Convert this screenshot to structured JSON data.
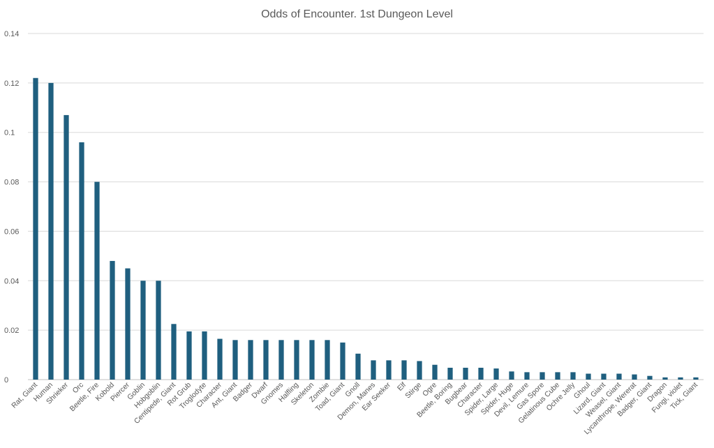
{
  "chart_data": {
    "type": "bar",
    "title": "Odds of Encounter. 1st Dungeon Level",
    "xlabel": "",
    "ylabel": "",
    "ylim": [
      0,
      0.14
    ],
    "yticks": [
      "0",
      "0.02",
      "0.04",
      "0.06",
      "0.08",
      "0.1",
      "0.12",
      "0.14"
    ],
    "grid": true,
    "legend": "none",
    "bar_color": "#1f5f7f",
    "categories": [
      "Rat, Giant",
      "Human",
      "Shrieker",
      "Orc",
      "Beetle, Fire",
      "Kobold",
      "Piercer",
      "Goblin",
      "Hobgoblin",
      "Centipede, Giant",
      "Rot Grub",
      "Troglodyte",
      "Character",
      "Ant, Giant",
      "Badger",
      "Dwarf",
      "Gnomes",
      "Halfling",
      "Skeleton",
      "Zombie",
      "Toad, Giant",
      "Gnoll",
      "Demon, Manes",
      "Ear Seeker",
      "Elf",
      "Stirge",
      "Ogre",
      "Beetle, Boring",
      "Bugbear",
      "Character",
      "Spider, Large",
      "Spider, Huge",
      "Devil, Lemure",
      "Gas Spore",
      "Gelatinous Cube",
      "Ochre Jelly",
      "Ghoul",
      "Lizard, Giant",
      "Weasel, Giant",
      "Lycanthrope, Wererat",
      "Badger, Giant",
      "Dragon",
      "Fungi, violet",
      "Tick, Giant"
    ],
    "values": [
      0.122,
      0.12,
      0.107,
      0.096,
      0.08,
      0.048,
      0.045,
      0.04,
      0.04,
      0.0225,
      0.0195,
      0.0195,
      0.0165,
      0.016,
      0.016,
      0.016,
      0.016,
      0.016,
      0.016,
      0.016,
      0.015,
      0.0105,
      0.0078,
      0.0078,
      0.0078,
      0.0075,
      0.006,
      0.0048,
      0.0048,
      0.0048,
      0.0045,
      0.0033,
      0.003,
      0.003,
      0.003,
      0.003,
      0.0024,
      0.0024,
      0.0024,
      0.0021,
      0.0015,
      0.0009,
      0.0009,
      0.0009
    ]
  }
}
